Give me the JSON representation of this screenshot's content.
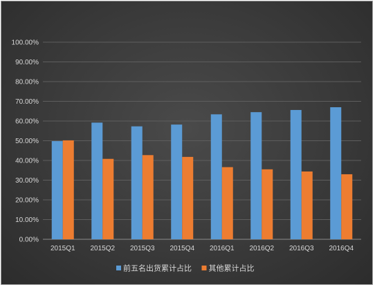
{
  "chart_data": {
    "type": "bar",
    "categories": [
      "2015Q1",
      "2015Q2",
      "2015Q3",
      "2015Q4",
      "2016Q1",
      "2016Q2",
      "2016Q3",
      "2016Q4"
    ],
    "series": [
      {
        "name": "前五名出货累计占比",
        "color": "#5b9bd5",
        "values": [
          49.8,
          59.2,
          57.3,
          58.2,
          63.4,
          64.5,
          65.6,
          67.0
        ]
      },
      {
        "name": "其他累计占比",
        "color": "#ed7d31",
        "values": [
          50.2,
          40.8,
          42.7,
          41.8,
          36.6,
          35.5,
          34.4,
          33.0
        ]
      }
    ],
    "ylim": [
      0,
      100
    ],
    "y_ticks": [
      "0.00%",
      "10.00%",
      "20.00%",
      "30.00%",
      "40.00%",
      "50.00%",
      "60.00%",
      "70.00%",
      "80.00%",
      "90.00%",
      "100.00%"
    ],
    "grid": true,
    "legend_position": "bottom",
    "title": "",
    "xlabel": "",
    "ylabel": ""
  }
}
